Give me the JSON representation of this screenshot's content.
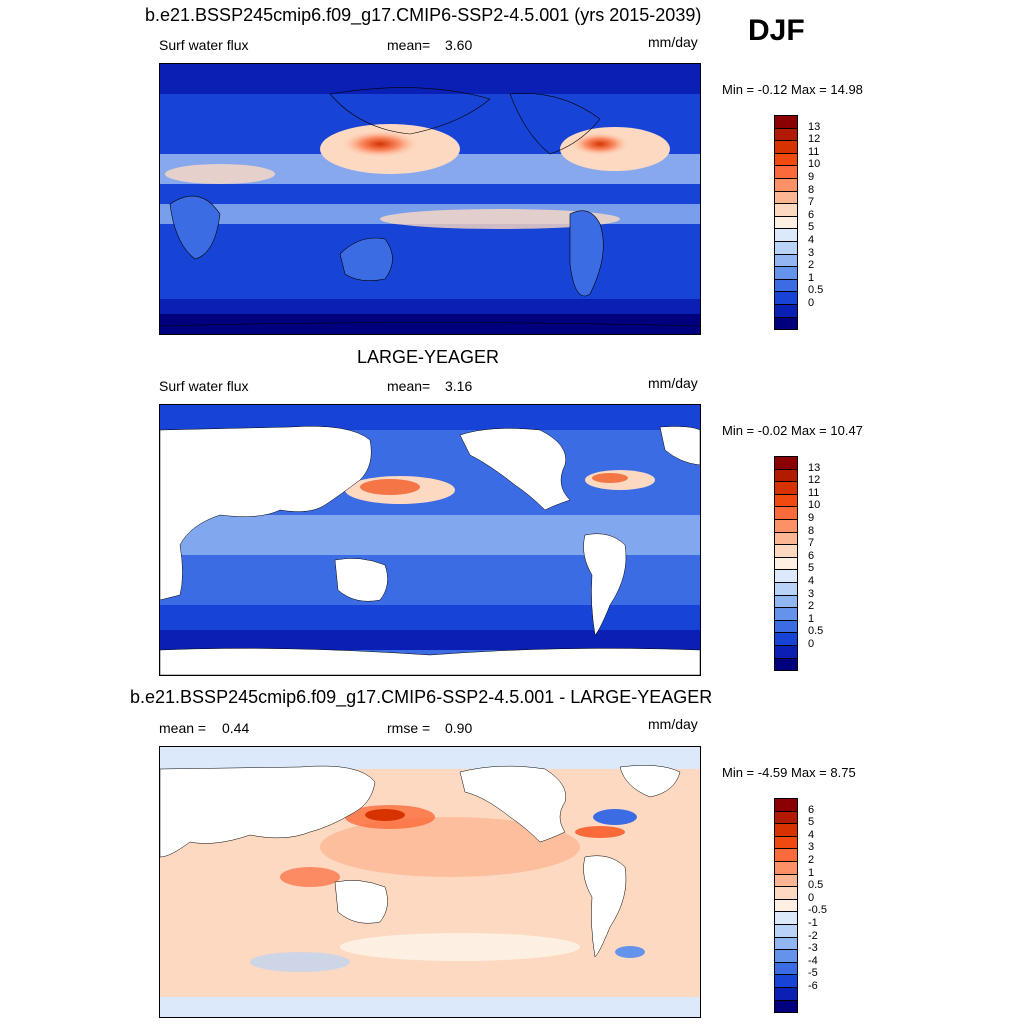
{
  "season": "DJF",
  "panels": [
    {
      "title": "b.e21.BSSP245cmip6.f09_g17.CMIP6-SSP2-4.5.001 (yrs 2015-2039)",
      "left_label": "Surf water flux",
      "stat_label": "mean=",
      "stat_value": "3.60",
      "units": "mm/day",
      "minmax": "Min =  -0.12 Max =  14.98",
      "colorbar": {
        "labels": [
          "13",
          "12",
          "11",
          "10",
          "9",
          "8",
          "7",
          "6",
          "5",
          "4",
          "3",
          "2",
          "1",
          "0.5",
          "0"
        ],
        "colors": [
          "#8b0000",
          "#b31b00",
          "#d63300",
          "#f04a10",
          "#fb6a3a",
          "#fc9168",
          "#fdb694",
          "#fdd9c2",
          "#fdf0e2",
          "#dbe9fb",
          "#b9d3f7",
          "#92b6f1",
          "#6593eb",
          "#3c6ce3",
          "#1744d6",
          "#0a20b4",
          "#00007f"
        ]
      },
      "map_type": "full"
    },
    {
      "title": "LARGE-YEAGER",
      "left_label": "Surf water flux",
      "stat_label": "mean=",
      "stat_value": "3.16",
      "units": "mm/day",
      "minmax": "Min =  -0.02 Max =  10.47",
      "colorbar": {
        "labels": [
          "13",
          "12",
          "11",
          "10",
          "9",
          "8",
          "7",
          "6",
          "5",
          "4",
          "3",
          "2",
          "1",
          "0.5",
          "0"
        ],
        "colors": [
          "#8b0000",
          "#b31b00",
          "#d63300",
          "#f04a10",
          "#fb6a3a",
          "#fc9168",
          "#fdb694",
          "#fdd9c2",
          "#fdf0e2",
          "#dbe9fb",
          "#b9d3f7",
          "#92b6f1",
          "#6593eb",
          "#3c6ce3",
          "#1744d6",
          "#0a20b4",
          "#00007f"
        ]
      },
      "map_type": "ocean"
    },
    {
      "title": "b.e21.BSSP245cmip6.f09_g17.CMIP6-SSP2-4.5.001 - LARGE-YEAGER",
      "left_label": "mean =",
      "left_value": "0.44",
      "stat_label": "rmse =",
      "stat_value": "0.90",
      "units": "mm/day",
      "minmax": "Min =  -4.59 Max =   8.75",
      "colorbar": {
        "labels": [
          "6",
          "5",
          "4",
          "3",
          "2",
          "1",
          "0.5",
          "0",
          "-0.5",
          "-1",
          "-2",
          "-3",
          "-4",
          "-5",
          "-6"
        ],
        "colors": [
          "#8b0000",
          "#b31b00",
          "#d63300",
          "#f04a10",
          "#fb6a3a",
          "#fc9168",
          "#fdb694",
          "#fdd9c2",
          "#fdf0e2",
          "#dbe9fb",
          "#b9d3f7",
          "#92b6f1",
          "#6593eb",
          "#3c6ce3",
          "#1744d6",
          "#0a20b4",
          "#00007f"
        ]
      },
      "map_type": "diff"
    }
  ]
}
